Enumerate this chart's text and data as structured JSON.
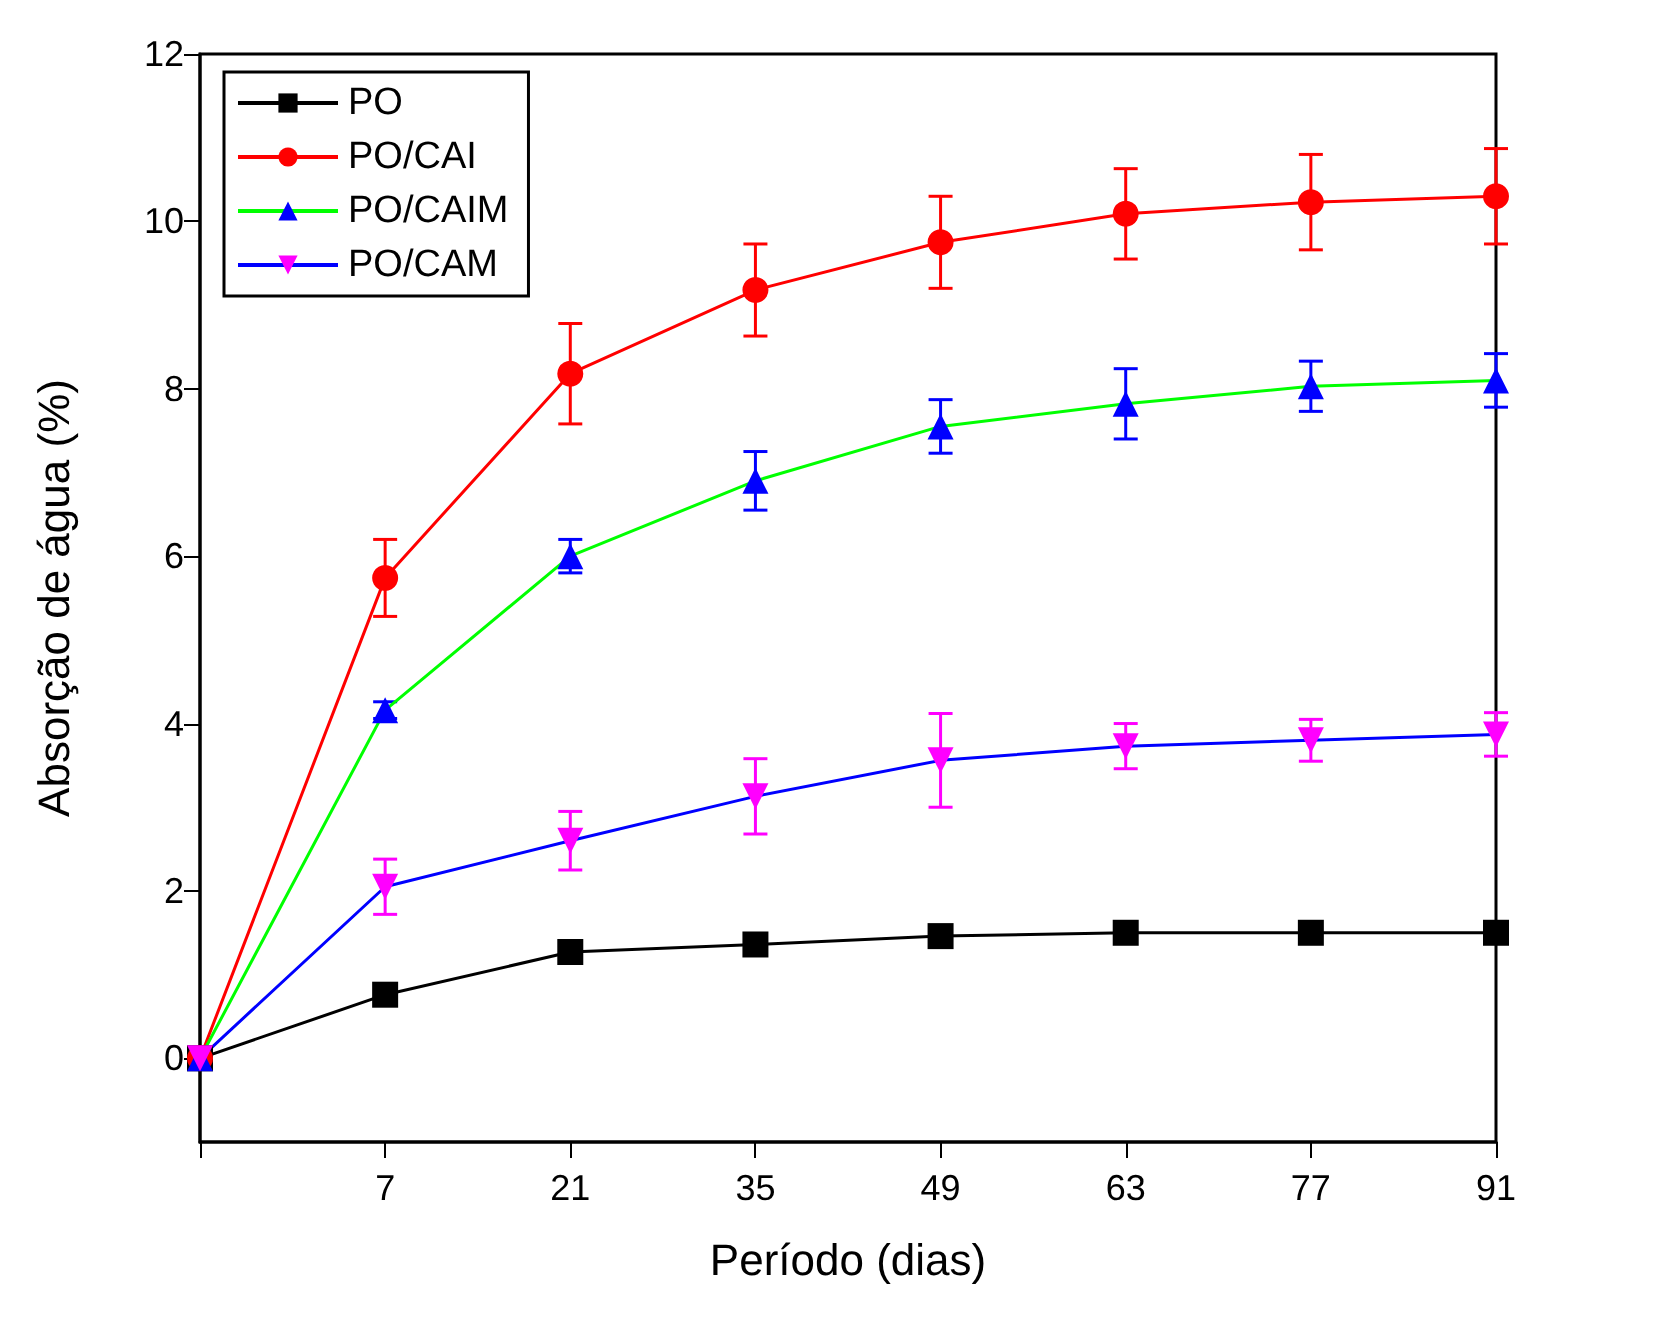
{
  "chart_data": {
    "type": "line",
    "xlabel": "Período (dias)",
    "ylabel": "Absorção de água (%)",
    "categories": [
      null,
      "7",
      "21",
      "35",
      "49",
      "63",
      "77",
      "91"
    ],
    "ylim": [
      -1,
      12
    ],
    "yticks": [
      0,
      2,
      4,
      6,
      8,
      10,
      12
    ],
    "legend": "top left",
    "series": [
      {
        "name": "PO",
        "color": "#000000",
        "marker": "square",
        "values": [
          0,
          0.76,
          1.27,
          1.36,
          1.46,
          1.5,
          1.5,
          1.5
        ]
      },
      {
        "name": "PO/CAI",
        "color": "#ff0000",
        "marker": "circle",
        "values": [
          0,
          5.74,
          8.18,
          9.18,
          9.75,
          10.09,
          10.23,
          10.3
        ],
        "errors": [
          null,
          0.46,
          0.6,
          0.55,
          0.55,
          0.54,
          0.57,
          0.57
        ]
      },
      {
        "name": "PO/CAIM",
        "color": "#00ff00",
        "colors": [
          "#0000ff",
          "#0000ff",
          "#0000ff",
          "#0000ff",
          "#0000ff",
          "#0000ff",
          "#0000ff",
          "#0000ff"
        ],
        "marker": "triangle",
        "values": [
          0,
          4.16,
          6.0,
          6.9,
          7.55,
          7.82,
          8.03,
          8.1
        ],
        "errors": [
          null,
          0.1,
          0.2,
          0.35,
          0.32,
          0.42,
          0.3,
          0.32
        ]
      },
      {
        "name": "PO/CAM",
        "color": "#0000ff",
        "colors": [
          "#ff00ff",
          "#ff00ff",
          "#ff00ff",
          "#ff00ff",
          "#ff00ff",
          "#ff00ff",
          "#ff00ff",
          "#ff00ff"
        ],
        "marker": "triangle-down",
        "values": [
          0,
          2.05,
          2.6,
          3.13,
          3.56,
          3.73,
          3.8,
          3.87
        ],
        "errors": [
          null,
          0.33,
          0.35,
          0.45,
          0.56,
          0.27,
          0.25,
          0.26
        ]
      }
    ]
  }
}
